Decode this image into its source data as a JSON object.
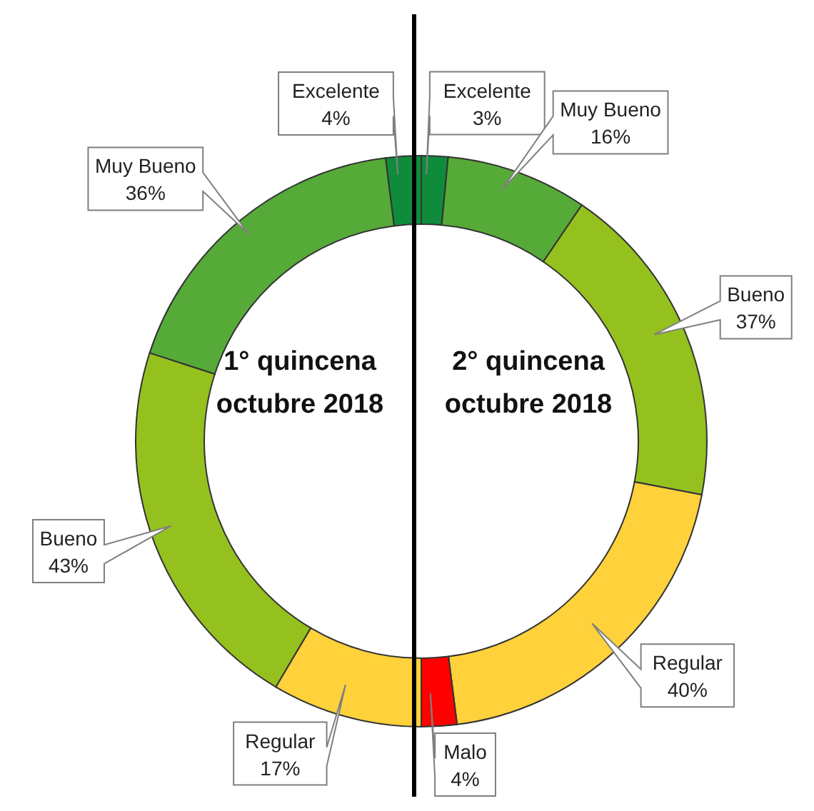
{
  "chart_data": [
    {
      "type": "donut",
      "title": "1° quincena octubre 2018",
      "categories": [
        "Excelente",
        "Muy Bueno",
        "Bueno",
        "Regular"
      ],
      "values": [
        4,
        36,
        43,
        17
      ],
      "colors": [
        "#0e8c3c",
        "#56aa38",
        "#95c11f",
        "#ffd13b"
      ],
      "value_labels": [
        "4%",
        "36%",
        "43%",
        "17%"
      ]
    },
    {
      "type": "donut",
      "title": "2° quincena octubre 2018",
      "categories": [
        "Excelente",
        "Muy Bueno",
        "Bueno",
        "Regular",
        "Malo"
      ],
      "values": [
        3,
        16,
        37,
        40,
        4
      ],
      "colors": [
        "#0e8c3c",
        "#56aa38",
        "#95c11f",
        "#ffd13b",
        "#ff0000"
      ],
      "value_labels": [
        "3%",
        "16%",
        "37%",
        "40%",
        "4%"
      ]
    }
  ]
}
